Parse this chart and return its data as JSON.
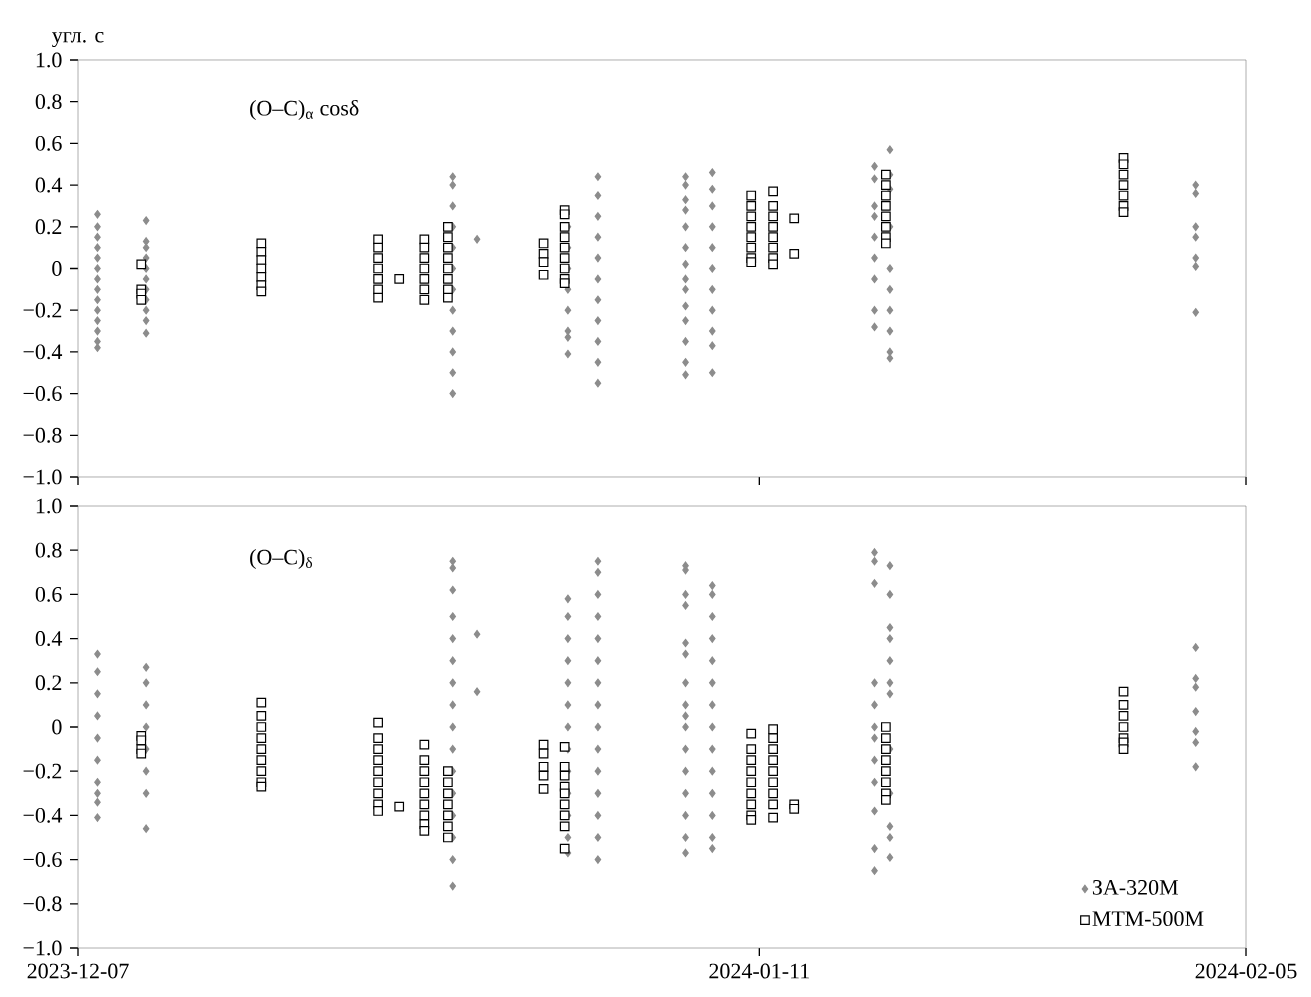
{
  "chart_data": [
    {
      "type": "scatter",
      "ylabel": "угл. с",
      "annotations": [
        "(O–C)$_{α}$ cosδ"
      ],
      "xlim": [
        "2023-12-07",
        "2024-02-05"
      ],
      "xticks": [
        "2023-12-07",
        "2024-01-11",
        "2024-02-05"
      ],
      "ylim": [
        -1.0,
        1.0
      ],
      "yticks": [
        {
          "value": -1.0,
          "label": "−1.0"
        },
        {
          "value": -0.8,
          "label": "−0.8"
        },
        {
          "value": -0.6,
          "label": "−0.6"
        },
        {
          "value": -0.4,
          "label": "−0.4"
        },
        {
          "value": -0.2,
          "label": "−0.2"
        },
        0,
        0.2,
        0.4,
        0.6,
        0.8,
        {
          "value": 1.0,
          "label": "1.0"
        }
      ],
      "tick_labels": "y",
      "series": [
        {
          "color": "#8c8c8c",
          "marker": "diamond",
          "x": [
            "2023-12-08",
            "2023-12-08",
            "2023-12-08",
            "2023-12-08",
            "2023-12-08",
            "2023-12-08",
            "2023-12-08",
            "2023-12-08",
            "2023-12-08",
            "2023-12-08",
            "2023-12-08",
            "2023-12-08",
            "2023-12-08",
            "2023-12-08",
            "2023-12-10T12:00",
            "2023-12-10T12:00",
            "2023-12-10T12:00",
            "2023-12-10T12:00",
            "2023-12-10T12:00",
            "2023-12-10T12:00",
            "2023-12-10T12:00",
            "2023-12-10T12:00",
            "2023-12-10T12:00",
            "2023-12-10T12:00",
            "2023-12-10T12:00",
            "2023-12-26T06:00",
            "2023-12-26T06:00",
            "2023-12-26T06:00",
            "2023-12-26T06:00",
            "2023-12-26T06:00",
            "2023-12-26T06:00",
            "2023-12-26T06:00",
            "2023-12-26T06:00",
            "2023-12-26T06:00",
            "2023-12-26T06:00",
            "2023-12-26T06:00",
            "2023-12-26T06:00",
            "2023-12-27T12:00",
            "2024-01-01T04:00",
            "2024-01-01T04:00",
            "2024-01-01T04:00",
            "2024-01-01T04:00",
            "2024-01-01T04:00",
            "2024-01-01T04:00",
            "2024-01-01T04:00",
            "2024-01-01T04:00",
            "2024-01-02T17:00",
            "2024-01-02T17:00",
            "2024-01-02T17:00",
            "2024-01-02T17:00",
            "2024-01-02T17:00",
            "2024-01-02T17:00",
            "2024-01-02T17:00",
            "2024-01-02T17:00",
            "2024-01-02T17:00",
            "2024-01-02T17:00",
            "2024-01-02T17:00",
            "2024-01-07T05:00",
            "2024-01-07T05:00",
            "2024-01-07T05:00",
            "2024-01-07T05:00",
            "2024-01-07T05:00",
            "2024-01-07T05:00",
            "2024-01-07T05:00",
            "2024-01-07T05:00",
            "2024-01-07T05:00",
            "2024-01-07T05:00",
            "2024-01-07T05:00",
            "2024-01-07T05:00",
            "2024-01-07T05:00",
            "2024-01-07T05:00",
            "2024-01-08T14:00",
            "2024-01-08T14:00",
            "2024-01-08T14:00",
            "2024-01-08T14:00",
            "2024-01-08T14:00",
            "2024-01-08T14:00",
            "2024-01-08T14:00",
            "2024-01-08T14:00",
            "2024-01-08T14:00",
            "2024-01-08T14:00",
            "2024-01-08T14:00",
            "2024-01-16T22:00",
            "2024-01-16T22:00",
            "2024-01-16T22:00",
            "2024-01-16T22:00",
            "2024-01-16T22:00",
            "2024-01-16T22:00",
            "2024-01-16T22:00",
            "2024-01-16T22:00",
            "2024-01-16T22:00",
            "2024-01-17T17:00",
            "2024-01-17T17:00",
            "2024-01-17T17:00",
            "2024-01-17T17:00",
            "2024-01-17T17:00",
            "2024-01-17T17:00",
            "2024-01-17T17:00",
            "2024-01-17T17:00",
            "2024-01-17T17:00",
            "2024-01-17T17:00",
            "2024-02-02T10:00",
            "2024-02-02T10:00",
            "2024-02-02T10:00",
            "2024-02-02T10:00",
            "2024-02-02T10:00",
            "2024-02-02T10:00",
            "2024-02-02T10:00"
          ],
          "values": [
            0.26,
            0.2,
            0.15,
            0.1,
            0.05,
            0,
            -0.05,
            -0.1,
            -0.15,
            -0.2,
            -0.25,
            -0.3,
            -0.35,
            -0.38,
            0.23,
            0.13,
            0.1,
            0.05,
            0,
            -0.05,
            -0.1,
            -0.15,
            -0.2,
            -0.25,
            -0.31,
            0.44,
            0.4,
            0.3,
            0.2,
            0.1,
            0,
            -0.1,
            -0.2,
            -0.3,
            -0.4,
            -0.5,
            -0.6,
            0.14,
            0.2,
            0.1,
            0,
            -0.1,
            -0.2,
            -0.3,
            -0.33,
            -0.41,
            0.44,
            0.35,
            0.25,
            0.15,
            0.05,
            -0.05,
            -0.15,
            -0.25,
            -0.35,
            -0.45,
            -0.55,
            0.44,
            0.4,
            0.33,
            0.28,
            0.2,
            0.1,
            0.02,
            -0.05,
            -0.1,
            -0.18,
            -0.25,
            -0.35,
            -0.45,
            -0.51,
            0.46,
            0.38,
            0.3,
            0.2,
            0.1,
            0,
            -0.1,
            -0.2,
            -0.3,
            -0.37,
            -0.5,
            0.49,
            0.43,
            0.3,
            0.25,
            0.15,
            0.05,
            -0.05,
            -0.2,
            -0.28,
            0.57,
            0.45,
            0.38,
            0.2,
            0,
            -0.1,
            -0.2,
            -0.3,
            -0.4,
            -0.43,
            0.4,
            0.36,
            0.2,
            0.15,
            0.05,
            0.01,
            -0.21
          ]
        },
        {
          "color": "#000000",
          "marker": "square",
          "x": [
            "2023-12-10T06:00",
            "2023-12-10T06:00",
            "2023-12-10T06:00",
            "2023-12-10T06:00",
            "2023-12-16T10:00",
            "2023-12-16T10:00",
            "2023-12-16T10:00",
            "2023-12-16T10:00",
            "2023-12-16T10:00",
            "2023-12-16T10:00",
            "2023-12-16T10:00",
            "2023-12-22T10:00",
            "2023-12-22T10:00",
            "2023-12-22T10:00",
            "2023-12-22T10:00",
            "2023-12-22T10:00",
            "2023-12-22T10:00",
            "2023-12-22T10:00",
            "2023-12-23T12:00",
            "2023-12-24T19:00",
            "2023-12-24T19:00",
            "2023-12-24T19:00",
            "2023-12-24T19:00",
            "2023-12-24T19:00",
            "2023-12-24T19:00",
            "2023-12-24T19:00",
            "2023-12-26T00:00",
            "2023-12-26T00:00",
            "2023-12-26T00:00",
            "2023-12-26T00:00",
            "2023-12-26T00:00",
            "2023-12-26T00:00",
            "2023-12-26T00:00",
            "2023-12-26T00:00",
            "2023-12-30T22:00",
            "2023-12-30T22:00",
            "2023-12-30T22:00",
            "2023-12-30T22:00",
            "2024-01-01T00:00",
            "2024-01-01T00:00",
            "2024-01-01T00:00",
            "2024-01-01T00:00",
            "2024-01-01T00:00",
            "2024-01-01T00:00",
            "2024-01-01T00:00",
            "2024-01-01T00:00",
            "2024-01-01T00:00",
            "2024-01-10T14:00",
            "2024-01-10T14:00",
            "2024-01-10T14:00",
            "2024-01-10T14:00",
            "2024-01-10T14:00",
            "2024-01-10T14:00",
            "2024-01-10T14:00",
            "2024-01-10T14:00",
            "2024-01-11T17:00",
            "2024-01-11T17:00",
            "2024-01-11T17:00",
            "2024-01-11T17:00",
            "2024-01-11T17:00",
            "2024-01-11T17:00",
            "2024-01-11T17:00",
            "2024-01-11T17:00",
            "2024-01-12T19:00",
            "2024-01-12T19:00",
            "2024-01-17T12:00",
            "2024-01-17T12:00",
            "2024-01-17T12:00",
            "2024-01-17T12:00",
            "2024-01-17T12:00",
            "2024-01-17T12:00",
            "2024-01-17T12:00",
            "2024-01-17T12:00",
            "2024-01-29T17:00",
            "2024-01-29T17:00",
            "2024-01-29T17:00",
            "2024-01-29T17:00",
            "2024-01-29T17:00",
            "2024-01-29T17:00",
            "2024-01-29T17:00"
          ],
          "values": [
            0.02,
            -0.1,
            -0.12,
            -0.15,
            0.12,
            0.08,
            0.04,
            0,
            -0.04,
            -0.08,
            -0.11,
            0.14,
            0.1,
            0.05,
            0,
            -0.05,
            -0.1,
            -0.14,
            -0.05,
            0.14,
            0.1,
            0.05,
            0,
            -0.05,
            -0.1,
            -0.15,
            0.2,
            0.15,
            0.1,
            0.05,
            0,
            -0.05,
            -0.1,
            -0.14,
            0.12,
            0.07,
            0.03,
            -0.03,
            0.28,
            0.26,
            0.2,
            0.15,
            0.1,
            0.05,
            0,
            -0.05,
            -0.07,
            0.35,
            0.3,
            0.25,
            0.2,
            0.15,
            0.1,
            0.05,
            0.03,
            0.37,
            0.3,
            0.25,
            0.2,
            0.15,
            0.1,
            0.05,
            0.02,
            0.24,
            0.07,
            0.45,
            0.4,
            0.35,
            0.3,
            0.25,
            0.2,
            0.15,
            0.12,
            0.53,
            0.5,
            0.45,
            0.4,
            0.35,
            0.3,
            0.27
          ]
        }
      ]
    },
    {
      "type": "scatter",
      "annotations": [
        "(O–C)$_{δ}$"
      ],
      "xlim": [
        "2023-12-07",
        "2024-02-05"
      ],
      "xticks": [
        "2023-12-07",
        "2024-01-11",
        "2024-02-05"
      ],
      "ylim": [
        -1.0,
        1.0
      ],
      "yticks": [
        {
          "value": -1.0,
          "label": "−1.0"
        },
        {
          "value": -0.8,
          "label": "−0.8"
        },
        {
          "value": -0.6,
          "label": "−0.6"
        },
        {
          "value": -0.4,
          "label": "−0.4"
        },
        {
          "value": -0.2,
          "label": "−0.2"
        },
        0,
        0.2,
        0.4,
        0.6,
        0.8,
        {
          "value": 1.0,
          "label": "1.0"
        }
      ],
      "legend": "bottom right",
      "series": [
        {
          "name": "ЗА-320М",
          "color": "#8c8c8c",
          "marker": "diamond",
          "x": [
            "2023-12-08",
            "2023-12-08",
            "2023-12-08",
            "2023-12-08",
            "2023-12-08",
            "2023-12-08",
            "2023-12-08",
            "2023-12-08",
            "2023-12-08",
            "2023-12-08",
            "2023-12-10T12:00",
            "2023-12-10T12:00",
            "2023-12-10T12:00",
            "2023-12-10T12:00",
            "2023-12-10T12:00",
            "2023-12-10T12:00",
            "2023-12-10T12:00",
            "2023-12-10T12:00",
            "2023-12-26T06:00",
            "2023-12-26T06:00",
            "2023-12-26T06:00",
            "2023-12-26T06:00",
            "2023-12-26T06:00",
            "2023-12-26T06:00",
            "2023-12-26T06:00",
            "2023-12-26T06:00",
            "2023-12-26T06:00",
            "2023-12-26T06:00",
            "2023-12-26T06:00",
            "2023-12-26T06:00",
            "2023-12-26T06:00",
            "2023-12-26T06:00",
            "2023-12-26T06:00",
            "2023-12-26T06:00",
            "2023-12-27T12:00",
            "2023-12-27T12:00",
            "2024-01-01T04:00",
            "2024-01-01T04:00",
            "2024-01-01T04:00",
            "2024-01-01T04:00",
            "2024-01-01T04:00",
            "2024-01-01T04:00",
            "2024-01-01T04:00",
            "2024-01-01T04:00",
            "2024-01-01T04:00",
            "2024-01-01T04:00",
            "2024-01-01T04:00",
            "2024-01-01T04:00",
            "2024-01-01T04:00",
            "2024-01-02T17:00",
            "2024-01-02T17:00",
            "2024-01-02T17:00",
            "2024-01-02T17:00",
            "2024-01-02T17:00",
            "2024-01-02T17:00",
            "2024-01-02T17:00",
            "2024-01-02T17:00",
            "2024-01-02T17:00",
            "2024-01-02T17:00",
            "2024-01-02T17:00",
            "2024-01-02T17:00",
            "2024-01-02T17:00",
            "2024-01-02T17:00",
            "2024-01-02T17:00",
            "2024-01-07T05:00",
            "2024-01-07T05:00",
            "2024-01-07T05:00",
            "2024-01-07T05:00",
            "2024-01-07T05:00",
            "2024-01-07T05:00",
            "2024-01-07T05:00",
            "2024-01-07T05:00",
            "2024-01-07T05:00",
            "2024-01-07T05:00",
            "2024-01-07T05:00",
            "2024-01-07T05:00",
            "2024-01-07T05:00",
            "2024-01-07T05:00",
            "2024-01-07T05:00",
            "2024-01-07T05:00",
            "2024-01-08T14:00",
            "2024-01-08T14:00",
            "2024-01-08T14:00",
            "2024-01-08T14:00",
            "2024-01-08T14:00",
            "2024-01-08T14:00",
            "2024-01-08T14:00",
            "2024-01-08T14:00",
            "2024-01-08T14:00",
            "2024-01-08T14:00",
            "2024-01-08T14:00",
            "2024-01-08T14:00",
            "2024-01-08T14:00",
            "2024-01-08T14:00",
            "2024-01-16T22:00",
            "2024-01-16T22:00",
            "2024-01-16T22:00",
            "2024-01-16T22:00",
            "2024-01-16T22:00",
            "2024-01-16T22:00",
            "2024-01-16T22:00",
            "2024-01-16T22:00",
            "2024-01-16T22:00",
            "2024-01-16T22:00",
            "2024-01-16T22:00",
            "2024-01-16T22:00",
            "2024-01-17T17:00",
            "2024-01-17T17:00",
            "2024-01-17T17:00",
            "2024-01-17T17:00",
            "2024-01-17T17:00",
            "2024-01-17T17:00",
            "2024-01-17T17:00",
            "2024-01-17T17:00",
            "2024-01-17T17:00",
            "2024-01-17T17:00",
            "2024-01-17T17:00",
            "2024-01-17T17:00",
            "2024-02-02T10:00",
            "2024-02-02T10:00",
            "2024-02-02T10:00",
            "2024-02-02T10:00",
            "2024-02-02T10:00",
            "2024-02-02T10:00",
            "2024-02-02T10:00"
          ],
          "values": [
            0.33,
            0.25,
            0.15,
            0.05,
            -0.05,
            -0.15,
            -0.25,
            -0.3,
            -0.34,
            -0.41,
            0.27,
            0.2,
            0.1,
            0,
            -0.1,
            -0.2,
            -0.3,
            -0.46,
            0.75,
            0.72,
            0.62,
            0.5,
            0.4,
            0.3,
            0.2,
            0.1,
            0,
            -0.1,
            -0.2,
            -0.3,
            -0.4,
            -0.5,
            -0.6,
            -0.72,
            0.42,
            0.16,
            0.58,
            0.5,
            0.4,
            0.3,
            0.2,
            0.1,
            0,
            -0.1,
            -0.2,
            -0.3,
            -0.4,
            -0.5,
            -0.57,
            0.75,
            0.7,
            0.6,
            0.5,
            0.4,
            0.3,
            0.2,
            0.1,
            0,
            -0.1,
            -0.2,
            -0.3,
            -0.4,
            -0.5,
            -0.6,
            0.73,
            0.71,
            0.6,
            0.55,
            0.38,
            0.33,
            0.2,
            0.1,
            0.05,
            0,
            -0.1,
            -0.2,
            -0.3,
            -0.4,
            -0.5,
            -0.57,
            0.64,
            0.6,
            0.5,
            0.4,
            0.3,
            0.2,
            0.1,
            0,
            -0.1,
            -0.2,
            -0.3,
            -0.4,
            -0.5,
            -0.55,
            0.79,
            0.75,
            0.65,
            0.2,
            0.1,
            0,
            -0.05,
            -0.15,
            -0.25,
            -0.38,
            -0.55,
            -0.65,
            0.73,
            0.6,
            0.45,
            0.4,
            0.3,
            0.2,
            0.15,
            -0.1,
            -0.3,
            -0.45,
            -0.5,
            -0.59,
            0.36,
            0.22,
            0.18,
            0.07,
            -0.02,
            -0.07,
            -0.18
          ]
        },
        {
          "name": "МТМ-500М",
          "color": "#000000",
          "marker": "square",
          "x": [
            "2023-12-10T06:00",
            "2023-12-10T06:00",
            "2023-12-10T06:00",
            "2023-12-10T06:00",
            "2023-12-16T10:00",
            "2023-12-16T10:00",
            "2023-12-16T10:00",
            "2023-12-16T10:00",
            "2023-12-16T10:00",
            "2023-12-16T10:00",
            "2023-12-16T10:00",
            "2023-12-16T10:00",
            "2023-12-16T10:00",
            "2023-12-22T10:00",
            "2023-12-22T10:00",
            "2023-12-22T10:00",
            "2023-12-22T10:00",
            "2023-12-22T10:00",
            "2023-12-22T10:00",
            "2023-12-22T10:00",
            "2023-12-22T10:00",
            "2023-12-22T10:00",
            "2023-12-23T12:00",
            "2023-12-24T19:00",
            "2023-12-24T19:00",
            "2023-12-24T19:00",
            "2023-12-24T19:00",
            "2023-12-24T19:00",
            "2023-12-24T19:00",
            "2023-12-24T19:00",
            "2023-12-24T19:00",
            "2023-12-24T19:00",
            "2023-12-26T00:00",
            "2023-12-26T00:00",
            "2023-12-26T00:00",
            "2023-12-26T00:00",
            "2023-12-26T00:00",
            "2023-12-26T00:00",
            "2023-12-26T00:00",
            "2023-12-30T22:00",
            "2023-12-30T22:00",
            "2023-12-30T22:00",
            "2023-12-30T22:00",
            "2023-12-30T22:00",
            "2024-01-01T00:00",
            "2024-01-01T00:00",
            "2024-01-01T00:00",
            "2024-01-01T00:00",
            "2024-01-01T00:00",
            "2024-01-01T00:00",
            "2024-01-01T00:00",
            "2024-01-01T00:00",
            "2024-01-01T00:00",
            "2024-01-10T14:00",
            "2024-01-10T14:00",
            "2024-01-10T14:00",
            "2024-01-10T14:00",
            "2024-01-10T14:00",
            "2024-01-10T14:00",
            "2024-01-10T14:00",
            "2024-01-10T14:00",
            "2024-01-10T14:00",
            "2024-01-11T17:00",
            "2024-01-11T17:00",
            "2024-01-11T17:00",
            "2024-01-11T17:00",
            "2024-01-11T17:00",
            "2024-01-11T17:00",
            "2024-01-11T17:00",
            "2024-01-11T17:00",
            "2024-01-11T17:00",
            "2024-01-12T19:00",
            "2024-01-12T19:00",
            "2024-01-17T12:00",
            "2024-01-17T12:00",
            "2024-01-17T12:00",
            "2024-01-17T12:00",
            "2024-01-17T12:00",
            "2024-01-17T12:00",
            "2024-01-17T12:00",
            "2024-01-17T12:00",
            "2024-01-29T17:00",
            "2024-01-29T17:00",
            "2024-01-29T17:00",
            "2024-01-29T17:00",
            "2024-01-29T17:00",
            "2024-01-29T17:00",
            "2024-01-29T17:00"
          ],
          "values": [
            -0.04,
            -0.06,
            -0.1,
            -0.12,
            0.11,
            0.05,
            0,
            -0.05,
            -0.1,
            -0.15,
            -0.2,
            -0.25,
            -0.27,
            0.02,
            -0.05,
            -0.1,
            -0.15,
            -0.2,
            -0.25,
            -0.3,
            -0.35,
            -0.38,
            -0.36,
            -0.08,
            -0.15,
            -0.2,
            -0.25,
            -0.3,
            -0.35,
            -0.4,
            -0.44,
            -0.47,
            -0.2,
            -0.25,
            -0.3,
            -0.35,
            -0.4,
            -0.45,
            -0.5,
            -0.08,
            -0.12,
            -0.18,
            -0.22,
            -0.28,
            -0.09,
            -0.18,
            -0.22,
            -0.27,
            -0.3,
            -0.35,
            -0.4,
            -0.45,
            -0.55,
            -0.03,
            -0.1,
            -0.15,
            -0.2,
            -0.25,
            -0.3,
            -0.35,
            -0.4,
            -0.42,
            -0.01,
            -0.05,
            -0.1,
            -0.15,
            -0.2,
            -0.25,
            -0.3,
            -0.35,
            -0.41,
            -0.35,
            -0.37,
            0,
            -0.05,
            -0.1,
            -0.15,
            -0.2,
            -0.25,
            -0.3,
            -0.33,
            0.16,
            0.1,
            0.05,
            0,
            -0.05,
            -0.07,
            -0.1
          ]
        }
      ]
    }
  ]
}
